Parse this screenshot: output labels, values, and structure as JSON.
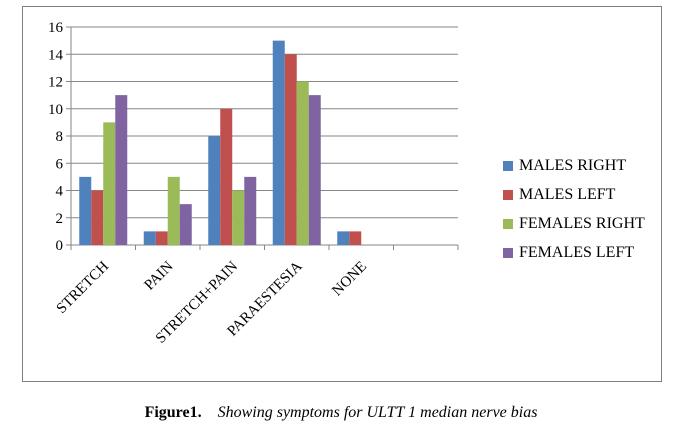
{
  "chart_data": {
    "type": "bar",
    "categories": [
      "STRETCH",
      "PAIN",
      "STRETCH+PAIN",
      "PARAESTESIA",
      "NONE",
      ""
    ],
    "series": [
      {
        "name": "MALES RIGHT",
        "color": "#4f81bd",
        "values": [
          5,
          1,
          8,
          15,
          1,
          0
        ]
      },
      {
        "name": "MALES LEFT",
        "color": "#c0504d",
        "values": [
          4,
          1,
          10,
          14,
          1,
          0
        ]
      },
      {
        "name": "FEMALES RIGHT",
        "color": "#9bbb59",
        "values": [
          9,
          5,
          4,
          12,
          0,
          0
        ]
      },
      {
        "name": "FEMALES LEFT",
        "color": "#8064a2",
        "values": [
          11,
          3,
          5,
          11,
          0,
          0
        ]
      }
    ],
    "ylim": [
      0,
      16
    ],
    "yticks": [
      0,
      2,
      4,
      6,
      8,
      10,
      12,
      14,
      16
    ],
    "grid": true,
    "legend_position": "right"
  },
  "caption": {
    "lead": "Figure1.",
    "text": "Showing symptoms for ULTT 1 median nerve bias"
  }
}
